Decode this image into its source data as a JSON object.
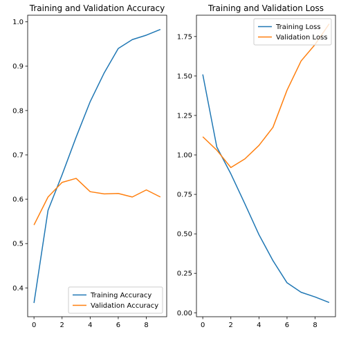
{
  "chart_data": [
    {
      "type": "line",
      "title": "Training and Validation Accuracy",
      "xlabel": "",
      "ylabel": "",
      "xlim": [
        -0.45,
        9.45
      ],
      "ylim": [
        0.335,
        1.015
      ],
      "x_ticks": [
        0,
        2,
        4,
        6,
        8
      ],
      "y_ticks": [
        0.4,
        0.5,
        0.6,
        0.7,
        0.8,
        0.9,
        1.0
      ],
      "y_tick_labels": [
        "0.4",
        "0.5",
        "0.6",
        "0.7",
        "0.8",
        "0.9",
        "1.0"
      ],
      "legend_position": "lower right",
      "grid": false,
      "x": [
        0,
        1,
        2,
        3,
        4,
        5,
        6,
        7,
        8,
        9
      ],
      "series": [
        {
          "name": "Training Accuracy",
          "color": "#1f77b4",
          "values": [
            0.366,
            0.575,
            0.655,
            0.74,
            0.82,
            0.885,
            0.94,
            0.96,
            0.97,
            0.983
          ]
        },
        {
          "name": "Validation Accuracy",
          "color": "#ff7f0e",
          "values": [
            0.542,
            0.605,
            0.638,
            0.647,
            0.617,
            0.612,
            0.613,
            0.605,
            0.621,
            0.605
          ]
        }
      ]
    },
    {
      "type": "line",
      "title": "Training and Validation Loss",
      "xlabel": "",
      "ylabel": "",
      "xlim": [
        -0.45,
        9.45
      ],
      "ylim": [
        -0.025,
        1.885
      ],
      "x_ticks": [
        0,
        2,
        4,
        6,
        8
      ],
      "y_ticks": [
        0.0,
        0.25,
        0.5,
        0.75,
        1.0,
        1.25,
        1.5,
        1.75
      ],
      "y_tick_labels": [
        "0.00",
        "0.25",
        "0.50",
        "0.75",
        "1.00",
        "1.25",
        "1.50",
        "1.75"
      ],
      "legend_position": "upper right",
      "grid": false,
      "x": [
        0,
        1,
        2,
        3,
        4,
        5,
        6,
        7,
        8,
        9
      ],
      "series": [
        {
          "name": "Training Loss",
          "color": "#1f77b4",
          "values": [
            1.51,
            1.05,
            0.88,
            0.69,
            0.495,
            0.33,
            0.19,
            0.13,
            0.1,
            0.065
          ]
        },
        {
          "name": "Validation Loss",
          "color": "#ff7f0e",
          "values": [
            1.115,
            1.03,
            0.92,
            0.975,
            1.06,
            1.175,
            1.41,
            1.595,
            1.7,
            1.83
          ]
        }
      ]
    }
  ]
}
